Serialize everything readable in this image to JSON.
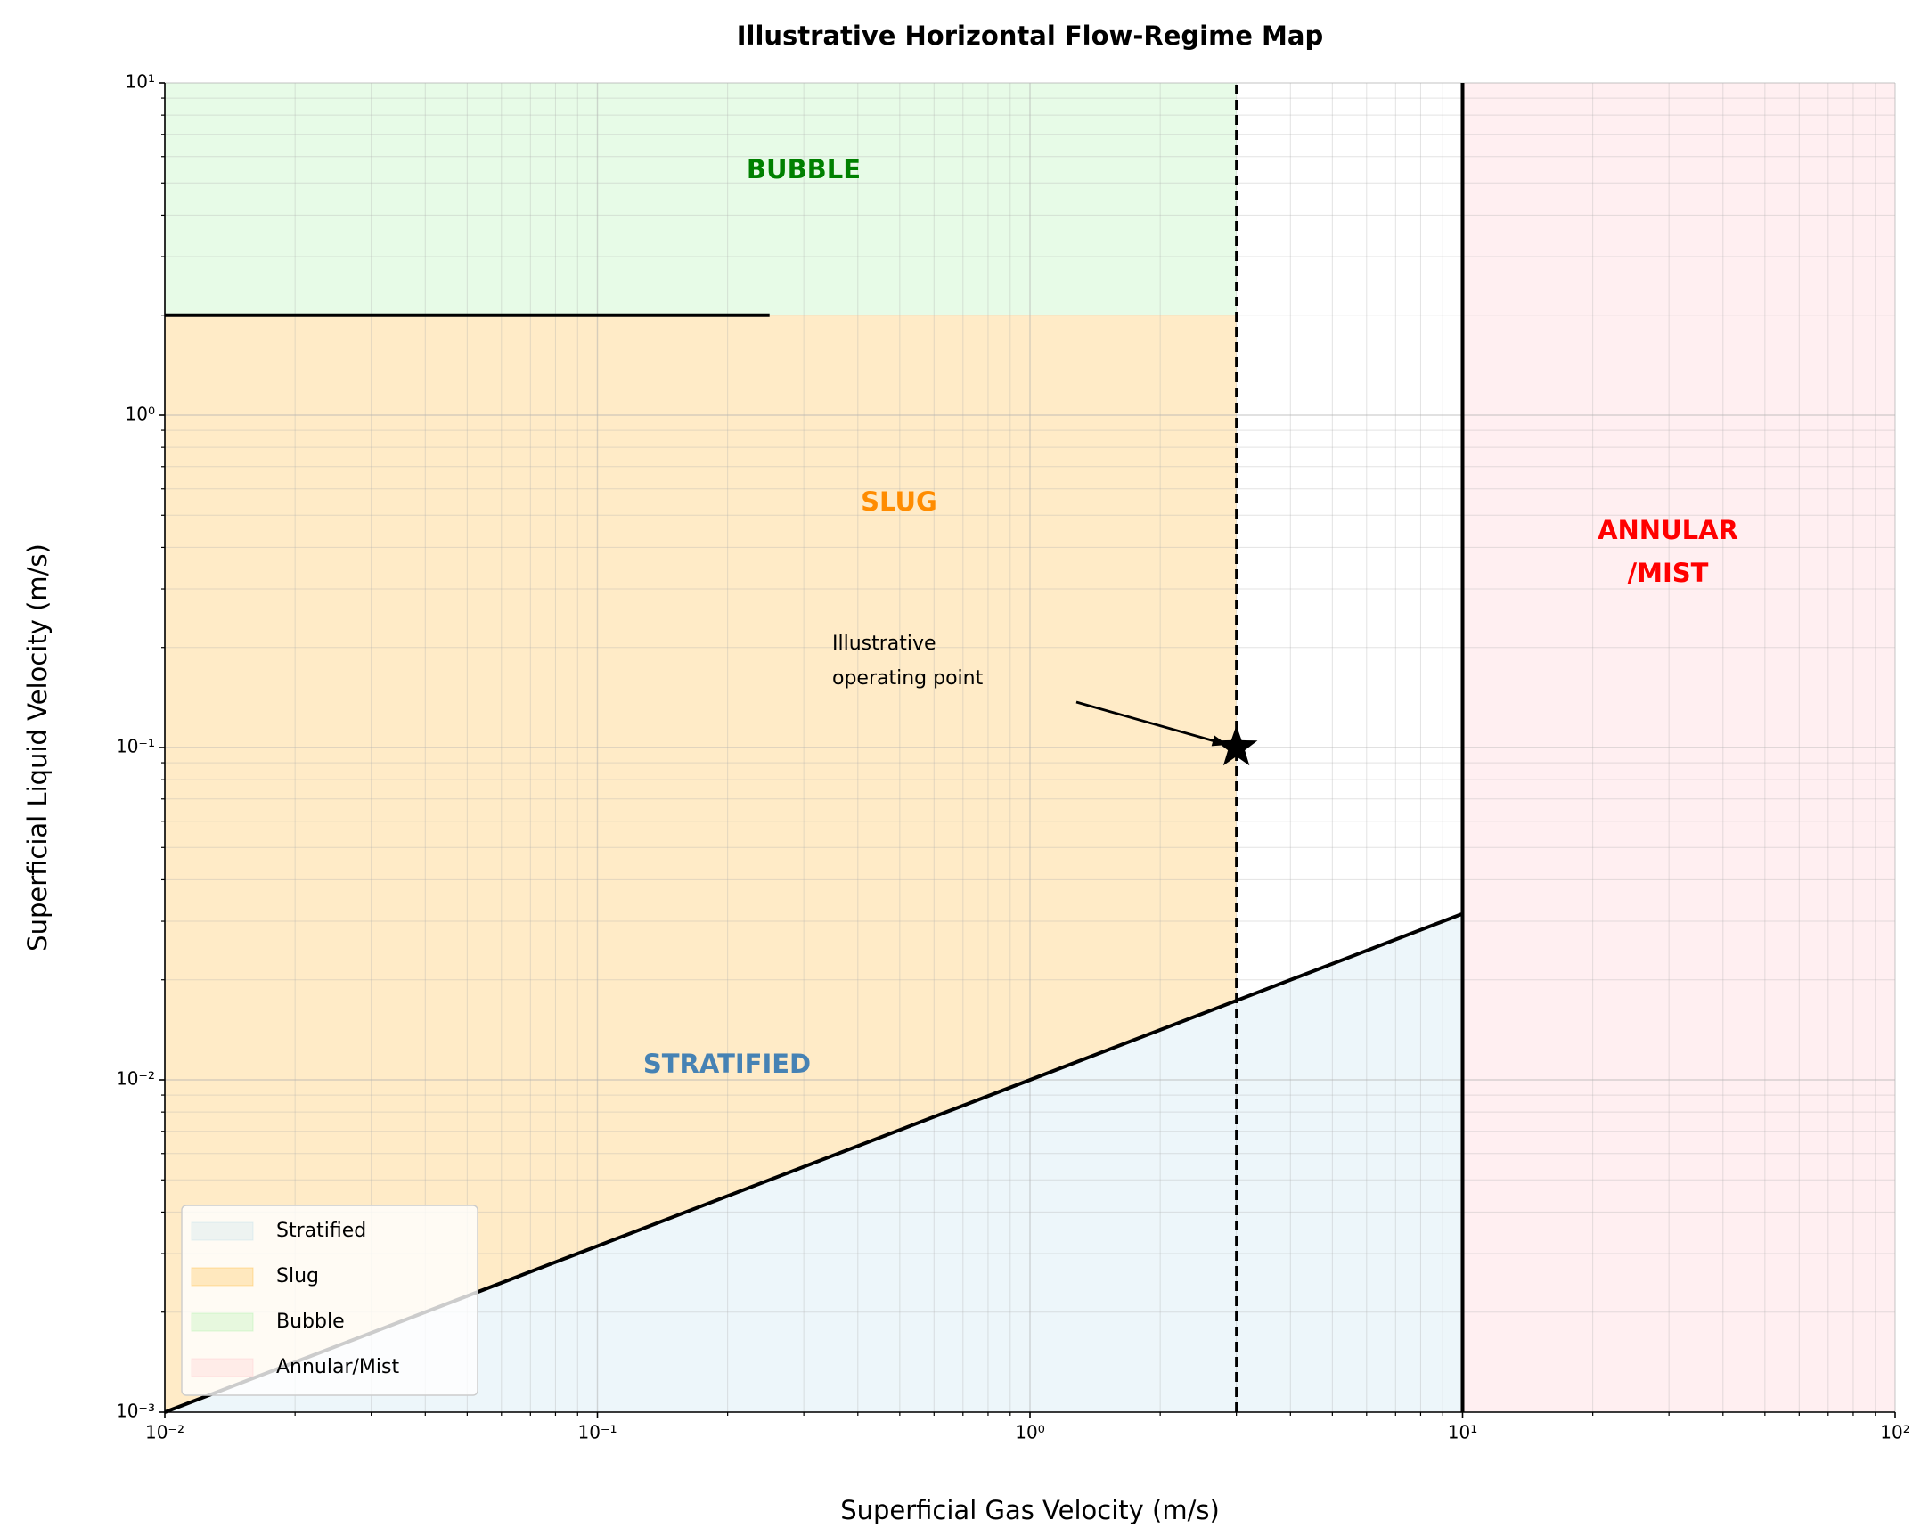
{
  "chart_data": {
    "type": "regime_map",
    "title": "Illustrative Horizontal Flow-Regime Map",
    "xlabel": "Superficial Gas Velocity (m/s)",
    "ylabel": "Superficial Liquid Velocity (m/s)",
    "xscale": "log",
    "yscale": "log",
    "xlim": [
      0.01,
      100
    ],
    "ylim": [
      0.001,
      10
    ],
    "xticks": [
      {
        "value": 0.01,
        "label": "10⁻²"
      },
      {
        "value": 0.1,
        "label": "10⁻¹"
      },
      {
        "value": 1,
        "label": "10⁰"
      },
      {
        "value": 10,
        "label": "10¹"
      },
      {
        "value": 100,
        "label": "10²"
      }
    ],
    "yticks": [
      {
        "value": 0.001,
        "label": "10⁻³"
      },
      {
        "value": 0.01,
        "label": "10⁻²"
      },
      {
        "value": 0.1,
        "label": "10⁻¹"
      },
      {
        "value": 1,
        "label": "10⁰"
      },
      {
        "value": 10,
        "label": "10¹"
      }
    ],
    "xminorticks": [
      0.02,
      0.03,
      0.04,
      0.05,
      0.06,
      0.07,
      0.08,
      0.09,
      0.2,
      0.3,
      0.4,
      0.5,
      0.6,
      0.7,
      0.8,
      0.9,
      2,
      3,
      4,
      5,
      6,
      7,
      8,
      9,
      20,
      30,
      40,
      50,
      60,
      70,
      80,
      90
    ],
    "yminorticks": [
      0.002,
      0.003,
      0.004,
      0.005,
      0.006,
      0.007,
      0.008,
      0.009,
      0.02,
      0.03,
      0.04,
      0.05,
      0.06,
      0.07,
      0.08,
      0.09,
      0.2,
      0.3,
      0.4,
      0.5,
      0.6,
      0.7,
      0.8,
      0.9,
      2,
      3,
      4,
      5,
      6,
      7,
      8,
      9
    ],
    "grid": true,
    "legend": "lower left",
    "regions": [
      {
        "name": "Stratified",
        "color": "#add8e6",
        "x": [
          0.01,
          10,
          10
        ],
        "y": [
          0.001,
          0.0316,
          0.001
        ],
        "label_lines": [
          "STRATIFIED"
        ],
        "label_color": "#4682b4"
      },
      {
        "name": "Slug",
        "color": "#ffa500",
        "x": [
          0.01,
          3,
          3,
          0.01
        ],
        "y": [
          0.001,
          0.0173,
          2,
          2
        ],
        "label_lines": [
          "SLUG"
        ],
        "label_color": "#ff8c00"
      },
      {
        "name": "Bubble",
        "color": "#90ee90",
        "x": [
          0.01,
          3,
          3,
          0.01
        ],
        "y": [
          2,
          2,
          10,
          10
        ],
        "label_lines": [
          "BUBBLE"
        ],
        "label_color": "#008000"
      },
      {
        "name": "Annular/Mist",
        "color": "#ffb6c1",
        "x": [
          10,
          100,
          100,
          10
        ],
        "y": [
          0.001,
          0.001,
          10,
          10
        ],
        "label_lines": [
          "ANNULAR",
          "/MIST"
        ],
        "label_color": "#ff0000"
      }
    ],
    "boundaries": [
      {
        "x": [
          0.01,
          10
        ],
        "y": [
          0.001,
          0.0316
        ],
        "style": "solid"
      },
      {
        "x": [
          0.01,
          0.25
        ],
        "y": [
          2,
          2
        ],
        "style": "solid"
      },
      {
        "x": [
          3,
          3
        ],
        "y": [
          0.001,
          10
        ],
        "style": "dashed"
      },
      {
        "x": [
          10,
          10
        ],
        "y": [
          0.001,
          10
        ],
        "style": "solid"
      }
    ],
    "marker": {
      "x": 3,
      "y": 0.1,
      "label_lines": [
        "Illustrative",
        "operating point"
      ]
    }
  }
}
